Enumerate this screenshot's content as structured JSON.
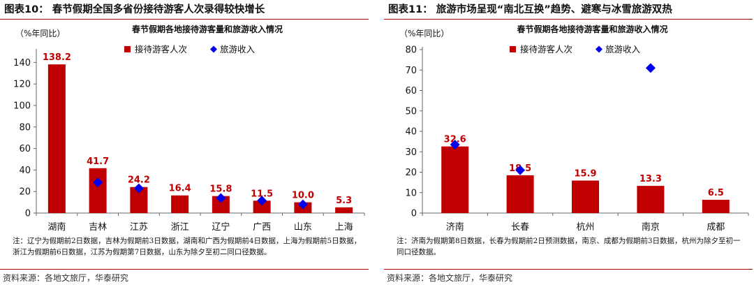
{
  "colors": {
    "bar": "#c00000",
    "marker": "#0000ee",
    "rule": "#a80000"
  },
  "chart_data": [
    {
      "type": "bar",
      "panel_title": "图表10：  春节假期全国多省份接待游客人次录得较快增长",
      "title": "春节假期各地接待游客量和旅游收入情况",
      "ylabel": "（%年同比）",
      "ylim": [
        0,
        150
      ],
      "yticks": [
        0,
        20,
        40,
        60,
        80,
        100,
        120,
        140
      ],
      "categories": [
        "湖南",
        "吉林",
        "江苏",
        "浙江",
        "辽宁",
        "广西",
        "山东",
        "上海"
      ],
      "series": [
        {
          "name": "接待游客人次",
          "kind": "bar",
          "values": [
            138.2,
            41.7,
            24.2,
            16.4,
            15.8,
            11.5,
            10.0,
            5.3
          ]
        },
        {
          "name": "旅游收入",
          "kind": "marker",
          "values": [
            null,
            28.5,
            23.0,
            null,
            14.0,
            11.5,
            8.0,
            null
          ]
        }
      ],
      "data_labels": [
        "138.2",
        "41.7",
        "24.2",
        "16.4",
        "15.8",
        "11.5",
        "10.0",
        "5.3"
      ],
      "legend_position": "top-right",
      "note": "注：辽宁为假期前2日数据，吉林为假期前3日数据，湖南和广西为假期前4日数据，上海为假期前5日数据，浙江为假期前6日数据，江苏为假期第7日数据，山东为除夕至初二同口径数据。",
      "source": "资料来源：各地文旅厅，华泰研究"
    },
    {
      "type": "bar",
      "panel_title": "图表11：  旅游市场呈现“南北互换”趋势、避寒与冰雪旅游双热",
      "title": "春节假期各地接待游客量和旅游收入情况",
      "ylabel": "（%年同比）",
      "ylim": [
        0,
        80
      ],
      "yticks": [
        0,
        10,
        20,
        30,
        40,
        50,
        60,
        70,
        80
      ],
      "categories": [
        "济南",
        "长春",
        "杭州",
        "南京",
        "成都"
      ],
      "series": [
        {
          "name": "接待游客人次",
          "kind": "bar",
          "values": [
            32.6,
            18.5,
            15.9,
            13.3,
            6.5
          ]
        },
        {
          "name": "旅游收入",
          "kind": "marker",
          "values": [
            33.5,
            21.0,
            null,
            71.0,
            null
          ]
        }
      ],
      "data_labels": [
        "32.6",
        "18.5",
        "15.9",
        "13.3",
        "6.5"
      ],
      "legend_position": "top-right",
      "note": "注：济南为假期第8日数据，长春为假期前2日预测数据，南京、成都为假期前3日数据，杭州为除夕至初一同口径数据。",
      "source": "资料来源：各地文旅厅，华泰研究"
    }
  ]
}
